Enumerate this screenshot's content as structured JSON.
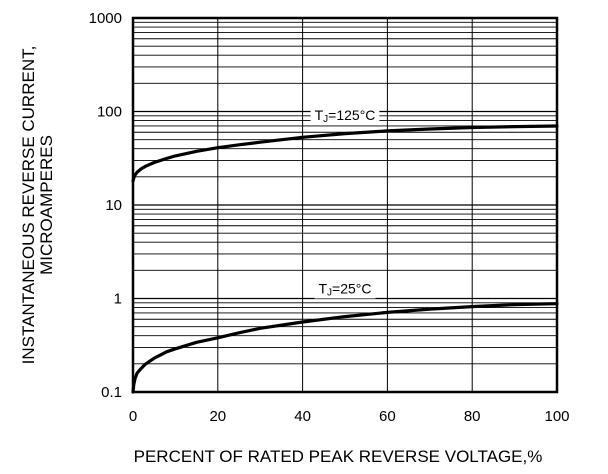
{
  "chart_data": {
    "type": "line",
    "xlabel": "PERCENT OF RATED PEAK REVERSE VOLTAGE,%",
    "ylabel_line1": "INSTANTANEOUS REVERSE CURRENT,",
    "ylabel_line2": "MICROAMPERES",
    "xlim": [
      0,
      100
    ],
    "ylim": [
      0.1,
      1000
    ],
    "yscale": "log",
    "grid": true,
    "x_ticks": [
      0,
      20,
      40,
      60,
      80,
      100
    ],
    "x_tick_labels": [
      "0",
      "20",
      "40",
      "60",
      "80",
      "100"
    ],
    "y_ticks": [
      0.1,
      1,
      10,
      100,
      1000
    ],
    "y_tick_labels": [
      "0.1",
      "1",
      "10",
      "100",
      "1000"
    ],
    "series": [
      {
        "label_prefix": "T",
        "label_sub": "J",
        "label_suffix": "=125°C",
        "label_at": [
          50,
          90
        ],
        "x": [
          0,
          0.2,
          0.5,
          1,
          2,
          3,
          5,
          8,
          10,
          15,
          20,
          25,
          30,
          40,
          50,
          60,
          70,
          80,
          90,
          100
        ],
        "y": [
          18,
          19.5,
          21,
          22.5,
          24.5,
          26,
          28.5,
          31.5,
          33.5,
          37.5,
          41,
          44,
          47,
          53,
          58,
          62,
          65,
          67.5,
          69,
          70
        ]
      },
      {
        "label_prefix": "T",
        "label_sub": "J",
        "label_suffix": "=25°C",
        "label_at": [
          50,
          1.25
        ],
        "x": [
          0,
          0.2,
          0.5,
          1,
          2,
          3,
          5,
          8,
          10,
          15,
          20,
          25,
          30,
          40,
          50,
          60,
          70,
          80,
          90,
          100
        ],
        "y": [
          0.1,
          0.12,
          0.14,
          0.16,
          0.18,
          0.2,
          0.23,
          0.27,
          0.29,
          0.34,
          0.38,
          0.43,
          0.48,
          0.56,
          0.64,
          0.71,
          0.77,
          0.82,
          0.86,
          0.88
        ]
      }
    ]
  }
}
